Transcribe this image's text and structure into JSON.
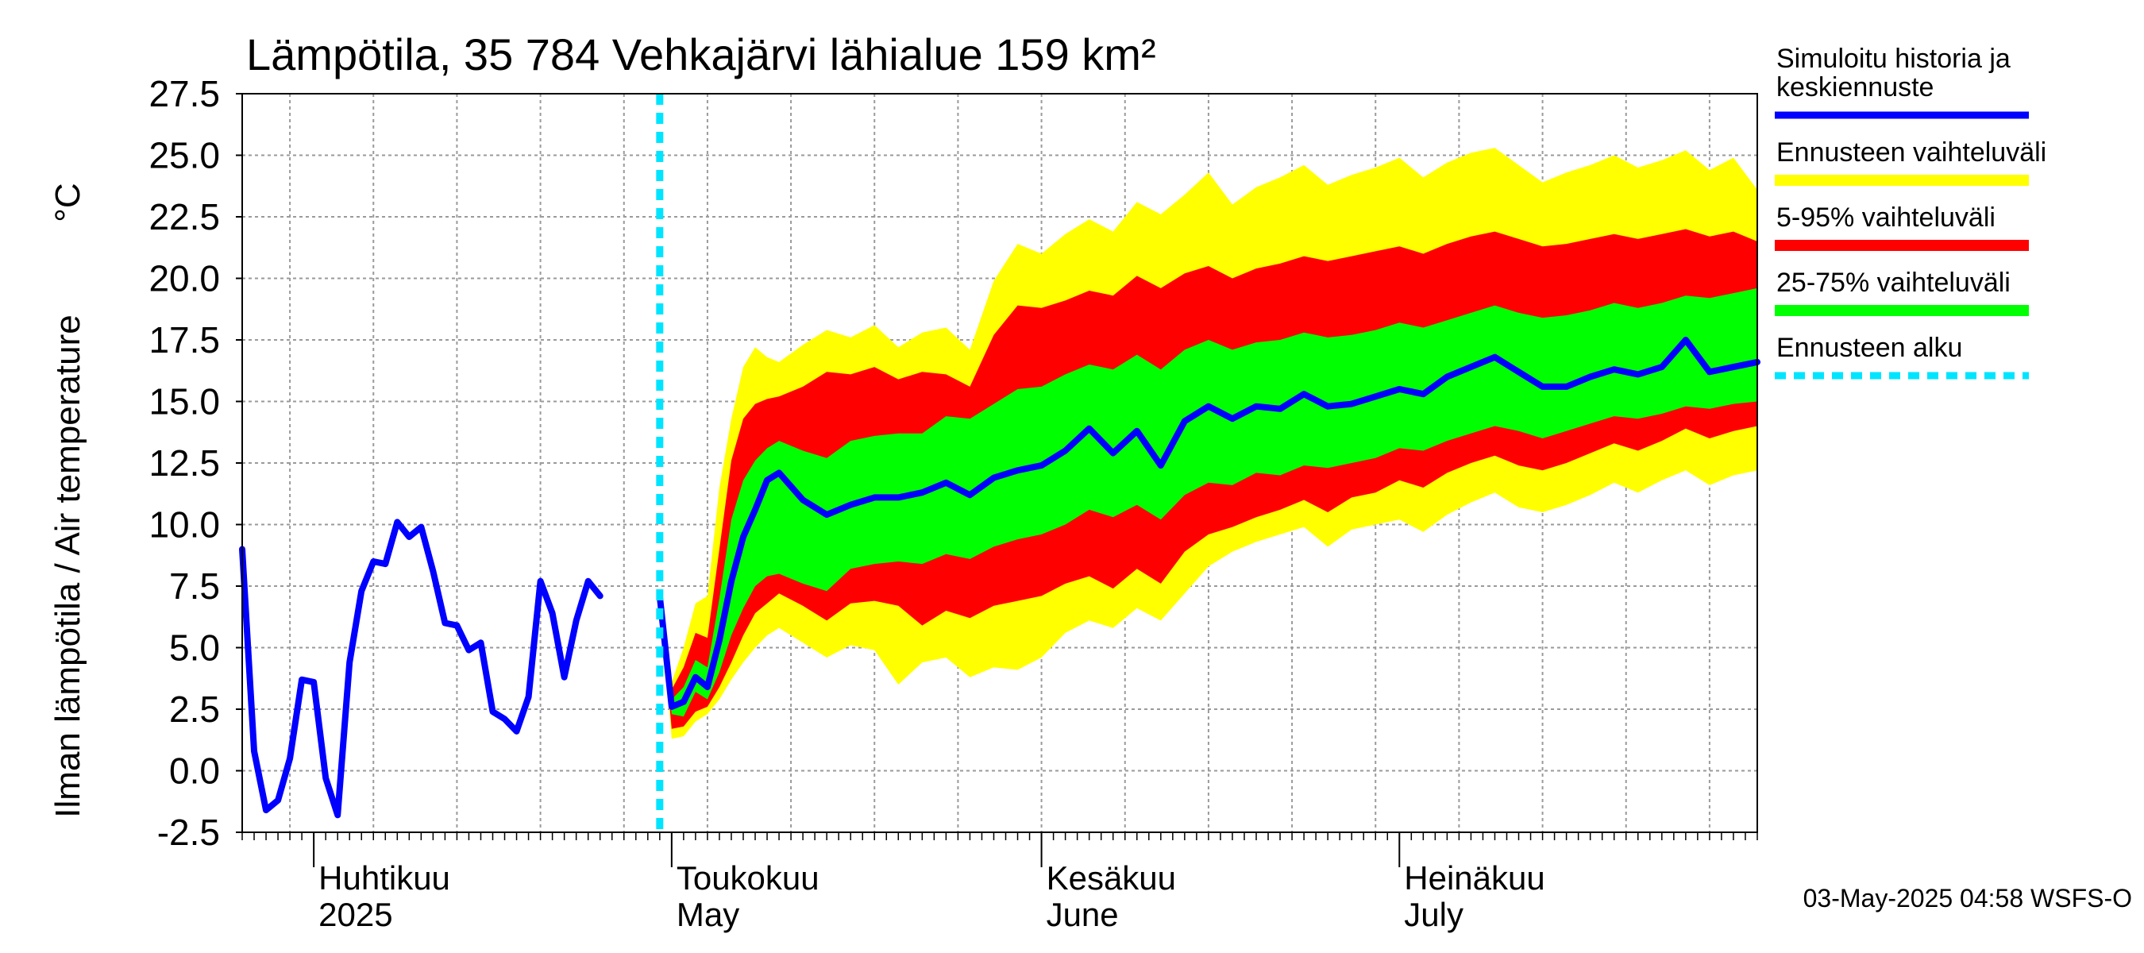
{
  "chart_data": {
    "type": "area",
    "title": "Lämpötila, 35 784 Vehkajärvi lähialue 159 km²",
    "ylabel": "Ilman lämpötila / Air temperature",
    "yunit": "°C",
    "ylim": [
      -2.5,
      27.5
    ],
    "yticks": [
      "27.5",
      "25.0",
      "22.5",
      "20.0",
      "17.5",
      "15.0",
      "12.5",
      "10.0",
      "7.5",
      "5.0",
      "2.5",
      "0.0",
      "-2.5"
    ],
    "xlim": [
      "2025-03-26",
      "2025-07-31"
    ],
    "month_labels": [
      {
        "fi": "Huhtikuu",
        "en": "2025",
        "date": "2025-04-01"
      },
      {
        "fi": "Toukokuu",
        "en": "May",
        "date": "2025-05-01"
      },
      {
        "fi": "Kesäkuu",
        "en": "June",
        "date": "2025-06-01"
      },
      {
        "fi": "Heinäkuu",
        "en": "July",
        "date": "2025-07-01"
      }
    ],
    "forecast_start": "2025-04-30",
    "grid": true,
    "legend_position": "right",
    "legend": [
      {
        "label": "Simuloitu historia ja keskiennuste",
        "lines": [
          "Simuloitu historia ja",
          "keskiennuste"
        ],
        "color": "#0000ff",
        "style": "solid"
      },
      {
        "label": "Ennusteen vaihteluväli",
        "lines": [
          "Ennusteen vaihteluväli"
        ],
        "color": "#ffff00",
        "style": "band"
      },
      {
        "label": "5-95% vaihteluväli",
        "lines": [
          "5-95% vaihteluväli"
        ],
        "color": "#ff0000",
        "style": "band"
      },
      {
        "label": "25-75% vaihteluväli",
        "lines": [
          "25-75% vaihteluväli"
        ],
        "color": "#00ff00",
        "style": "band"
      },
      {
        "label": "Ennusteen alku",
        "lines": [
          "Ennusteen alku"
        ],
        "color": "#00e5ff",
        "style": "dashed"
      }
    ],
    "history": {
      "start": "2025-03-26",
      "values": [
        9.0,
        0.8,
        -1.6,
        -1.2,
        0.5,
        3.7,
        3.6,
        -0.3,
        -1.8,
        4.4,
        7.3,
        8.5,
        8.4,
        10.1,
        9.5,
        9.9,
        8.1,
        6.0,
        5.9,
        4.9,
        5.2,
        2.4,
        2.1,
        1.6,
        3.0,
        7.7,
        6.4,
        3.8,
        6.1,
        7.7,
        7.1
      ]
    },
    "forecast": {
      "start": "2025-04-30",
      "x": [
        0,
        1,
        2,
        3,
        4,
        5,
        6,
        7,
        8,
        9,
        10,
        12,
        14,
        16,
        18,
        20,
        22,
        24,
        26,
        28,
        30,
        32,
        34,
        36,
        38,
        40,
        42,
        44,
        46,
        48,
        50,
        52,
        54,
        56,
        58,
        60,
        62,
        64,
        66,
        68,
        70,
        72,
        74,
        76,
        78,
        80,
        82,
        84,
        86,
        88,
        90,
        92
      ],
      "mean": [
        7.1,
        2.6,
        2.8,
        3.8,
        3.4,
        5.3,
        7.7,
        9.5,
        10.6,
        11.8,
        12.1,
        11.0,
        10.4,
        10.8,
        11.1,
        11.1,
        11.3,
        11.7,
        11.2,
        11.9,
        12.2,
        12.4,
        13.0,
        13.9,
        12.9,
        13.8,
        12.4,
        14.2,
        14.8,
        14.3,
        14.8,
        14.7,
        15.3,
        14.8,
        14.9,
        15.2,
        15.5,
        15.3,
        16.0,
        16.4,
        16.8,
        16.2,
        15.6,
        15.6,
        16.0,
        16.3,
        16.1,
        16.4,
        17.5,
        16.2,
        16.4,
        16.6
      ],
      "p25": [
        7.1,
        2.3,
        2.2,
        3.2,
        2.9,
        4.0,
        5.5,
        6.6,
        7.5,
        7.9,
        8.0,
        7.6,
        7.3,
        8.2,
        8.4,
        8.5,
        8.4,
        8.8,
        8.6,
        9.1,
        9.4,
        9.6,
        10.0,
        10.6,
        10.3,
        10.8,
        10.2,
        11.2,
        11.7,
        11.6,
        12.1,
        12.0,
        12.4,
        12.3,
        12.5,
        12.7,
        13.1,
        13.0,
        13.4,
        13.7,
        14.0,
        13.8,
        13.5,
        13.8,
        14.1,
        14.4,
        14.3,
        14.5,
        14.8,
        14.7,
        14.9,
        15.0
      ],
      "p75": [
        7.1,
        2.9,
        3.4,
        4.5,
        4.2,
        7.0,
        10.2,
        11.8,
        12.6,
        13.1,
        13.4,
        13.0,
        12.7,
        13.4,
        13.6,
        13.7,
        13.7,
        14.4,
        14.3,
        14.9,
        15.5,
        15.6,
        16.1,
        16.5,
        16.3,
        16.9,
        16.3,
        17.1,
        17.5,
        17.1,
        17.4,
        17.5,
        17.8,
        17.6,
        17.7,
        17.9,
        18.2,
        18.0,
        18.3,
        18.6,
        18.9,
        18.6,
        18.4,
        18.5,
        18.7,
        19.0,
        18.8,
        19.0,
        19.3,
        19.2,
        19.4,
        19.6
      ],
      "p5": [
        7.1,
        1.7,
        1.8,
        2.4,
        2.6,
        3.4,
        4.4,
        5.5,
        6.4,
        6.8,
        7.2,
        6.7,
        6.1,
        6.8,
        6.9,
        6.7,
        5.9,
        6.5,
        6.2,
        6.7,
        6.9,
        7.1,
        7.6,
        7.9,
        7.4,
        8.2,
        7.6,
        8.9,
        9.6,
        9.9,
        10.3,
        10.6,
        11.0,
        10.5,
        11.1,
        11.3,
        11.8,
        11.5,
        12.1,
        12.5,
        12.8,
        12.4,
        12.2,
        12.5,
        12.9,
        13.3,
        13.0,
        13.4,
        13.9,
        13.5,
        13.8,
        14.0
      ],
      "p95": [
        7.1,
        3.3,
        4.2,
        5.6,
        5.4,
        9.0,
        12.6,
        14.3,
        14.9,
        15.1,
        15.2,
        15.6,
        16.2,
        16.1,
        16.4,
        15.9,
        16.2,
        16.1,
        15.6,
        17.7,
        18.9,
        18.8,
        19.1,
        19.5,
        19.3,
        20.1,
        19.6,
        20.2,
        20.5,
        20.0,
        20.4,
        20.6,
        20.9,
        20.7,
        20.9,
        21.1,
        21.3,
        21.0,
        21.4,
        21.7,
        21.9,
        21.6,
        21.3,
        21.4,
        21.6,
        21.8,
        21.6,
        21.8,
        22.0,
        21.7,
        21.9,
        21.5
      ],
      "ymin": [
        7.1,
        1.3,
        1.4,
        2.0,
        2.3,
        2.9,
        3.7,
        4.4,
        5.0,
        5.5,
        5.8,
        5.2,
        4.6,
        5.1,
        4.9,
        3.5,
        4.4,
        4.6,
        3.8,
        4.2,
        4.1,
        4.6,
        5.6,
        6.1,
        5.8,
        6.6,
        6.1,
        7.2,
        8.3,
        8.9,
        9.3,
        9.6,
        9.9,
        9.1,
        9.8,
        10.0,
        10.2,
        9.7,
        10.4,
        10.9,
        11.3,
        10.7,
        10.5,
        10.8,
        11.2,
        11.7,
        11.3,
        11.8,
        12.2,
        11.6,
        12.0,
        12.2
      ],
      "ymax": [
        7.1,
        3.6,
        5.0,
        6.8,
        7.1,
        11.5,
        14.3,
        16.4,
        17.2,
        16.8,
        16.6,
        17.3,
        17.9,
        17.6,
        18.1,
        17.2,
        17.8,
        18.0,
        17.1,
        19.9,
        21.4,
        21.0,
        21.8,
        22.4,
        21.9,
        23.1,
        22.6,
        23.4,
        24.3,
        23.0,
        23.7,
        24.1,
        24.6,
        23.8,
        24.2,
        24.5,
        24.9,
        24.1,
        24.7,
        25.1,
        25.3,
        24.6,
        23.9,
        24.3,
        24.6,
        25.0,
        24.5,
        24.8,
        25.2,
        24.4,
        24.9,
        23.6
      ]
    },
    "timestamp": "03-May-2025 04:58 WSFS-O"
  }
}
